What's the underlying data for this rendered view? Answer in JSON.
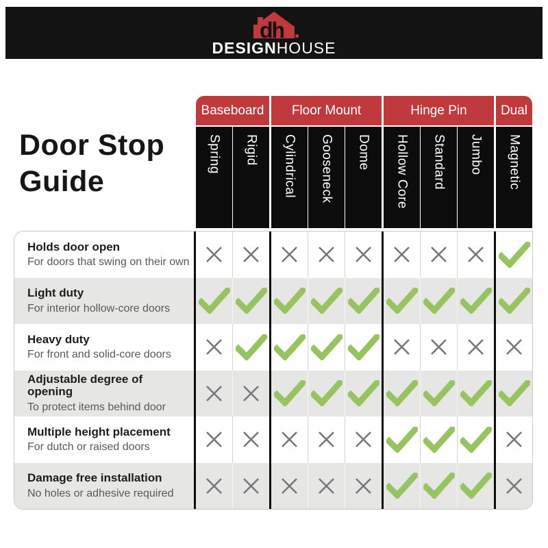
{
  "brand": {
    "logo_monogram": "dh",
    "logo_dot": ".",
    "name_bold": "DESIGN",
    "name_light": "HOUSE"
  },
  "page_title": {
    "line1": "Door Stop",
    "line2": "Guide"
  },
  "table": {
    "groups": [
      {
        "label": "Baseboard",
        "columns": [
          "Spring",
          "Rigid"
        ]
      },
      {
        "label": "Floor Mount",
        "columns": [
          "Cylindrical",
          "Gooseneck",
          "Dome"
        ]
      },
      {
        "label": "Hinge Pin",
        "columns": [
          "Hollow Core",
          "Standard",
          "Jumbo"
        ]
      },
      {
        "label": "Dual",
        "columns": [
          "Magnetic"
        ]
      }
    ],
    "rows": [
      {
        "title": "Holds door open",
        "subtitle": "For doors that swing on their own",
        "marks": [
          "x",
          "x",
          "x",
          "x",
          "x",
          "x",
          "x",
          "x",
          "check"
        ]
      },
      {
        "title": "Light duty",
        "subtitle": "For interior hollow-core doors",
        "marks": [
          "check",
          "check",
          "check",
          "check",
          "check",
          "check",
          "check",
          "check",
          "check"
        ]
      },
      {
        "title": "Heavy duty",
        "subtitle": "For front and solid-core doors",
        "marks": [
          "x",
          "check",
          "check",
          "check",
          "check",
          "x",
          "x",
          "x",
          "x"
        ]
      },
      {
        "title": "Adjustable degree of opening",
        "subtitle": "To protect items behind door",
        "marks": [
          "x",
          "x",
          "check",
          "check",
          "check",
          "check",
          "check",
          "check",
          "check"
        ]
      },
      {
        "title": "Multiple height placement",
        "subtitle": "For dutch or raised doors",
        "marks": [
          "x",
          "x",
          "x",
          "x",
          "x",
          "check",
          "check",
          "check",
          "x"
        ]
      },
      {
        "title": "Damage free installation",
        "subtitle": "No holes or adhesive required",
        "marks": [
          "x",
          "x",
          "x",
          "x",
          "x",
          "check",
          "check",
          "check",
          "x"
        ]
      }
    ]
  },
  "icons": {
    "yes": "check-icon",
    "no": "x-icon"
  },
  "colors": {
    "accent_red": "#C0393D",
    "banner_black": "#131313",
    "header_black": "#0C0C0C",
    "check_green": "#97C361",
    "x_gray": "#76777A",
    "alt_row_gray": "#E6E6E4",
    "border_gray": "#C8C8C6"
  },
  "chart_data": {
    "type": "table",
    "title": "Door Stop Guide",
    "column_groups": [
      "Baseboard",
      "Baseboard",
      "Floor Mount",
      "Floor Mount",
      "Floor Mount",
      "Hinge Pin",
      "Hinge Pin",
      "Hinge Pin",
      "Dual"
    ],
    "columns": [
      "Spring",
      "Rigid",
      "Cylindrical",
      "Gooseneck",
      "Dome",
      "Hollow Core",
      "Standard",
      "Jumbo",
      "Magnetic"
    ],
    "row_labels": [
      "Holds door open",
      "Light duty",
      "Heavy duty",
      "Adjustable degree of opening",
      "Multiple height placement",
      "Damage free installation"
    ],
    "values": [
      [
        false,
        false,
        false,
        false,
        false,
        false,
        false,
        false,
        true
      ],
      [
        true,
        true,
        true,
        true,
        true,
        true,
        true,
        true,
        true
      ],
      [
        false,
        true,
        true,
        true,
        true,
        false,
        false,
        false,
        false
      ],
      [
        false,
        false,
        true,
        true,
        true,
        true,
        true,
        true,
        true
      ],
      [
        false,
        false,
        false,
        false,
        false,
        true,
        true,
        true,
        false
      ],
      [
        false,
        false,
        false,
        false,
        false,
        true,
        true,
        true,
        false
      ]
    ]
  }
}
